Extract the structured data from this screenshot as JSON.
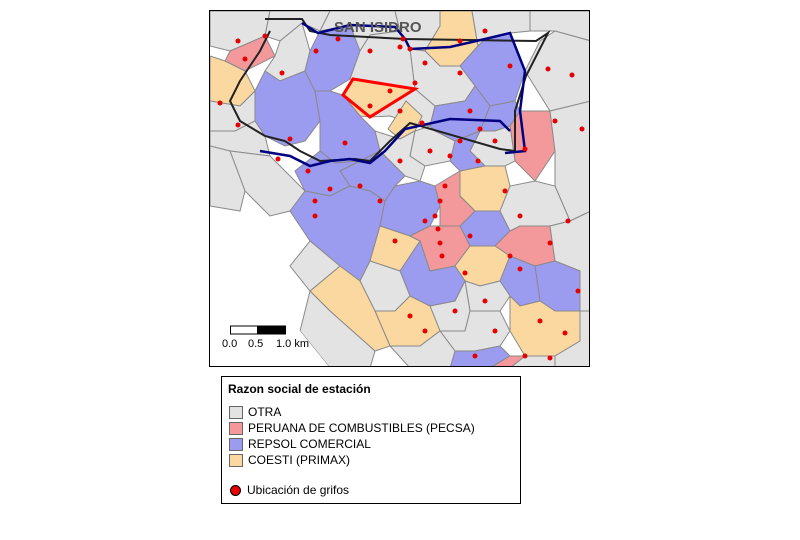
{
  "map": {
    "district_label": "SAN ISIDRO",
    "colors": {
      "otra": "#e3e3e3",
      "pecsa": "#f4999b",
      "repsol": "#9b9bf0",
      "coesti": "#fad8a0",
      "boundary": "#222222",
      "route": "#000080",
      "highlight": "#ff0000",
      "points": "#e60000",
      "cell_border": "#8a8a8a"
    }
  },
  "scalebar": {
    "ticks": [
      "0.0",
      "0.5",
      "1.0 km"
    ]
  },
  "legend": {
    "title": "Razon social de estación",
    "items": [
      {
        "label": "OTRA",
        "color": "#e3e3e3"
      },
      {
        "label": "PERUANA DE COMBUSTIBLES (PECSA)",
        "color": "#f4999b"
      },
      {
        "label": "REPSOL COMERCIAL",
        "color": "#9b9bf0"
      },
      {
        "label": "COESTI (PRIMAX)",
        "color": "#fad8a0"
      }
    ],
    "points_label": "Ubicación de grifos"
  }
}
